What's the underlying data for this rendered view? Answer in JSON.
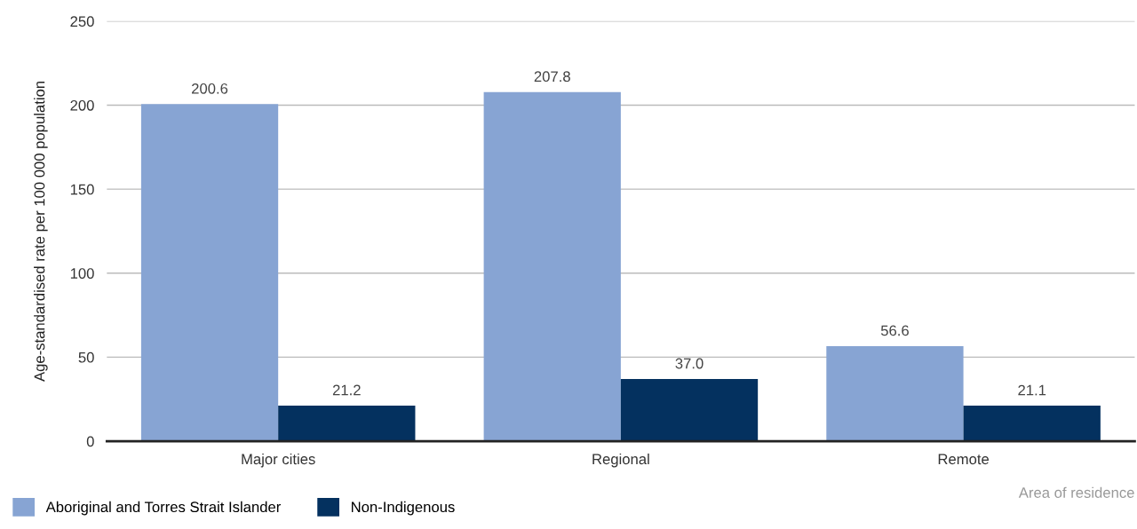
{
  "chart_data": {
    "type": "bar",
    "ylabel": "Age-standardised rate per 100 000 population",
    "xlabel": "Area of residence",
    "categories": [
      "Major cities",
      "Regional",
      "Remote"
    ],
    "series": [
      {
        "name": "Aboriginal and Torres Strait Islander",
        "color": "#87a4d3",
        "values": [
          200.6,
          207.8,
          56.6
        ],
        "value_labels": [
          "200.6",
          "207.8",
          "56.6"
        ]
      },
      {
        "name": "Non-Indigenous",
        "color": "#04315f",
        "values": [
          21.2,
          37.0,
          21.1
        ],
        "value_labels": [
          "21.2",
          "37.0",
          "21.1"
        ]
      }
    ],
    "ylim": [
      0,
      250
    ],
    "yticks": [
      0,
      50,
      100,
      150,
      200,
      250
    ],
    "grid": "y",
    "legend": "bottom"
  }
}
